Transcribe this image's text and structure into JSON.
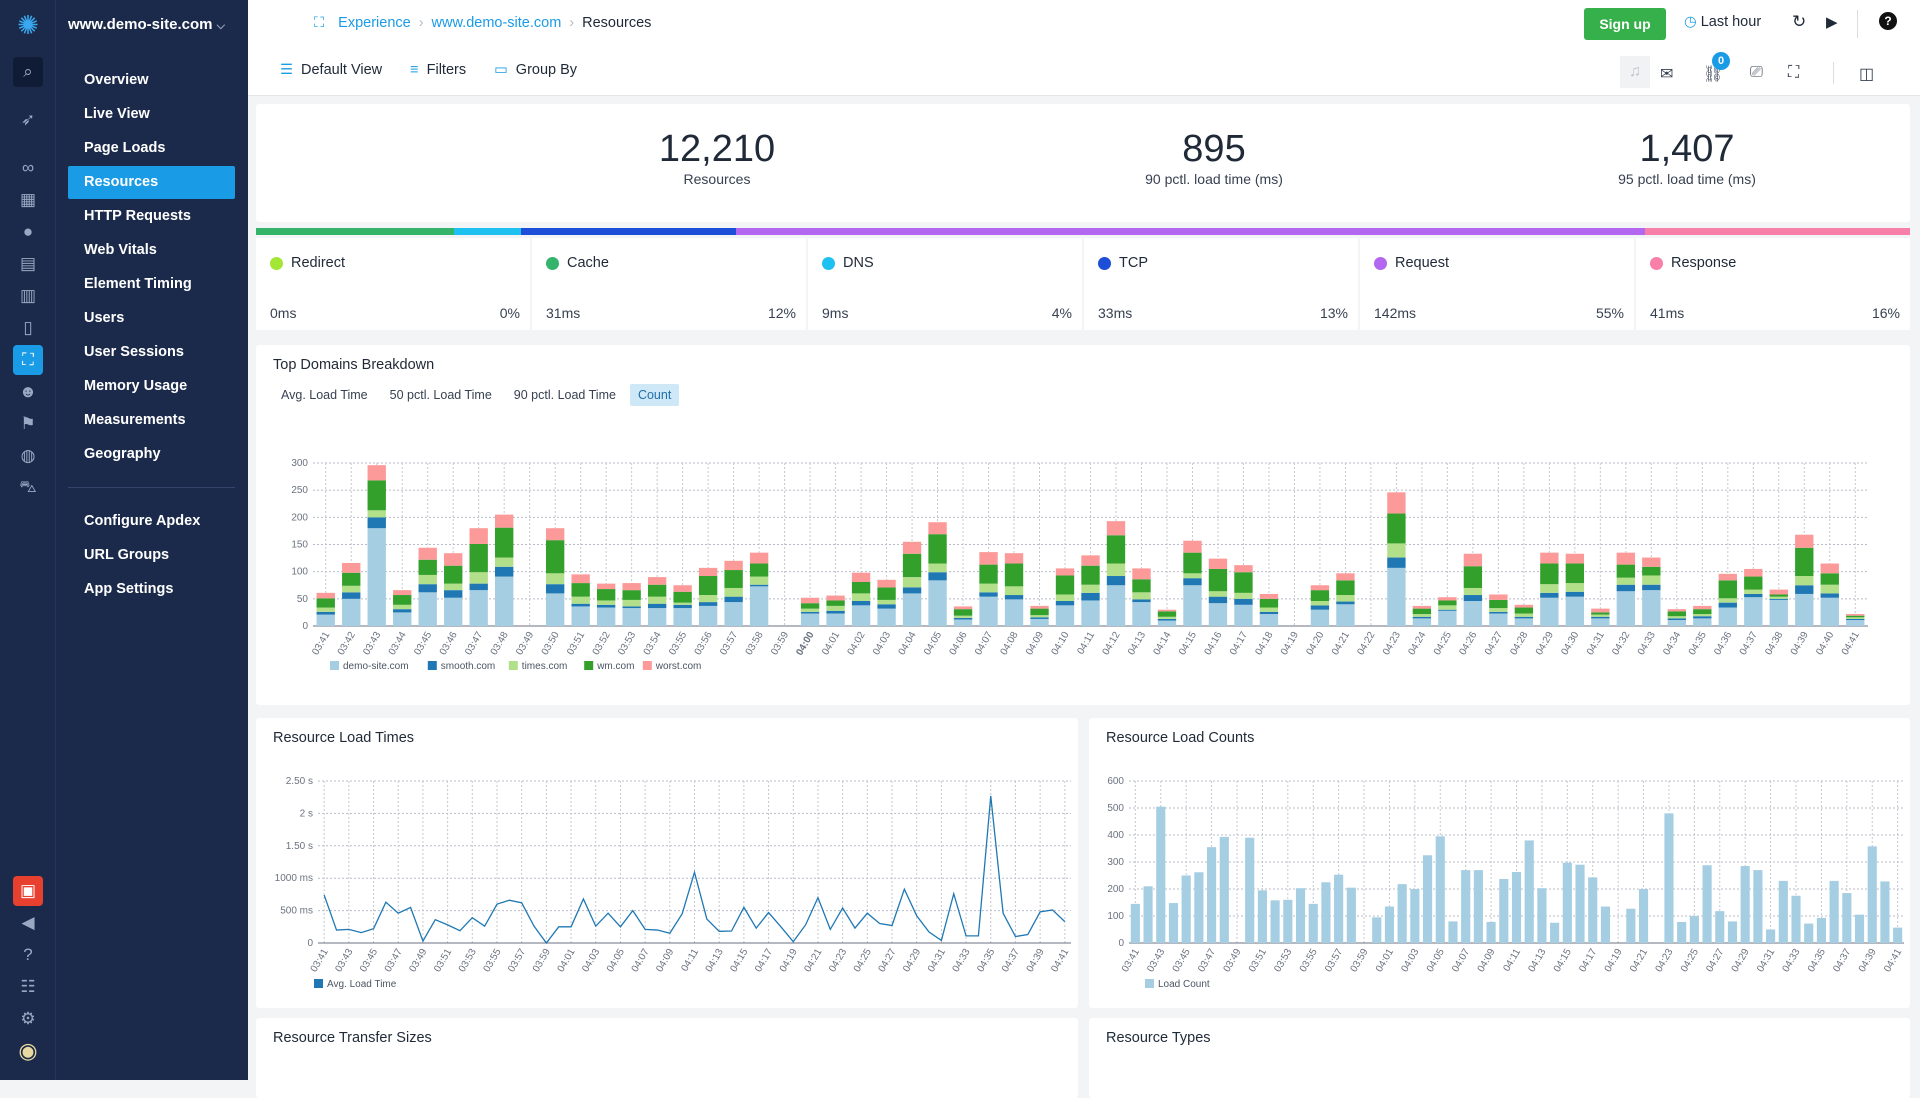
{
  "site": "www.demo-site.com",
  "nav": [
    "Overview",
    "Live View",
    "Page Loads",
    "Resources",
    "HTTP Requests",
    "Web Vitals",
    "Element Timing",
    "Users",
    "User Sessions",
    "Memory Usage",
    "Measurements",
    "Geography"
  ],
  "nav2": [
    "Configure Apdex",
    "URL Groups",
    "App Settings"
  ],
  "active": "Resources",
  "breadcrumb": [
    "Experience",
    "www.demo-site.com",
    "Resources"
  ],
  "toolbar": {
    "default_view": "Default View",
    "filters": "Filters",
    "group_by": "Group By",
    "signup": "Sign up",
    "time_range": "Last hour",
    "link_badge": "0"
  },
  "stats": [
    {
      "value": "12,210",
      "label": "Resources"
    },
    {
      "value": "895",
      "label": "90 pctl. load time (ms)"
    },
    {
      "value": "1,407",
      "label": "95 pctl. load time (ms)"
    }
  ],
  "phases": [
    {
      "name": "Redirect",
      "time": "0ms",
      "pct": "0%",
      "color": "#a3e635",
      "share": 0
    },
    {
      "name": "Cache",
      "time": "31ms",
      "pct": "12%",
      "color": "#34b36b",
      "share": 12
    },
    {
      "name": "DNS",
      "time": "9ms",
      "pct": "4%",
      "color": "#1fc1f0",
      "share": 4
    },
    {
      "name": "TCP",
      "time": "33ms",
      "pct": "13%",
      "color": "#1d4ed8",
      "share": 13
    },
    {
      "name": "Request",
      "time": "142ms",
      "pct": "55%",
      "color": "#b366f0",
      "share": 55
    },
    {
      "name": "Response",
      "time": "41ms",
      "pct": "16%",
      "color": "#f77fa8",
      "share": 16
    }
  ],
  "top_domains": {
    "title": "Top Domains Breakdown",
    "tabs": [
      "Avg. Load Time",
      "50 pctl. Load Time",
      "90 pctl. Load Time",
      "Count"
    ],
    "active_tab": "Count"
  },
  "cards": {
    "load_times": "Resource Load Times",
    "load_counts": "Resource Load Counts",
    "transfer_sizes": "Resource Transfer Sizes",
    "types": "Resource Types"
  },
  "chart_data": [
    {
      "type": "bar",
      "stacked": true,
      "ylim": [
        0,
        300
      ],
      "yticks": [
        "0",
        "50",
        "100",
        "150",
        "200",
        "250",
        "300"
      ],
      "grid": true,
      "legend": "bottom-left",
      "categories": [
        "03:41",
        "03:42",
        "03:43",
        "03:44",
        "03:45",
        "03:46",
        "03:47",
        "03:48",
        "03:49",
        "03:50",
        "03:51",
        "03:52",
        "03:53",
        "03:54",
        "03:55",
        "03:56",
        "03:57",
        "03:58",
        "03:59",
        "04:00",
        "04:01",
        "04:02",
        "04:03",
        "04:04",
        "04:05",
        "04:06",
        "04:07",
        "04:08",
        "04:09",
        "04:10",
        "04:11",
        "04:12",
        "04:13",
        "04:14",
        "04:15",
        "04:16",
        "04:17",
        "04:18",
        "04:19",
        "04:20",
        "04:21",
        "04:22",
        "04:23",
        "04:24",
        "04:25",
        "04:26",
        "04:27",
        "04:28",
        "04:29",
        "04:30",
        "04:31",
        "04:32",
        "04:33",
        "04:34",
        "04:35",
        "04:36",
        "04:37",
        "04:38",
        "04:39",
        "04:40",
        "04:41"
      ],
      "series": [
        {
          "name": "demo-site.com",
          "color": "#a6cee3",
          "values": [
            21,
            50,
            180,
            25,
            62,
            52,
            66,
            91,
            0,
            60,
            36,
            34,
            33,
            33,
            33,
            37,
            44,
            73,
            0,
            23,
            23,
            38,
            32,
            60,
            84,
            12,
            54,
            49,
            13,
            38,
            47,
            75,
            44,
            10,
            75,
            42,
            39,
            22,
            0,
            30,
            40,
            0,
            107,
            14,
            28,
            46,
            23,
            14,
            52,
            54,
            14,
            64,
            66,
            11,
            14,
            34,
            53,
            48,
            59,
            52,
            11
          ]
        },
        {
          "name": "smooth.com",
          "color": "#1f78b4",
          "values": [
            5,
            12,
            20,
            6,
            15,
            14,
            12,
            18,
            0,
            17,
            5,
            5,
            3,
            8,
            6,
            7,
            10,
            3,
            0,
            3,
            5,
            8,
            8,
            11,
            15,
            3,
            8,
            8,
            3,
            8,
            14,
            17,
            5,
            3,
            13,
            12,
            11,
            4,
            0,
            8,
            5,
            0,
            19,
            3,
            2,
            11,
            3,
            3,
            9,
            9,
            3,
            12,
            10,
            3,
            4,
            9,
            6,
            2,
            16,
            8,
            2
          ]
        },
        {
          "name": "times.com",
          "color": "#b2df8a",
          "values": [
            8,
            12,
            13,
            8,
            17,
            12,
            21,
            17,
            0,
            20,
            13,
            8,
            12,
            13,
            4,
            13,
            16,
            15,
            0,
            6,
            9,
            14,
            8,
            19,
            16,
            4,
            16,
            16,
            4,
            12,
            15,
            23,
            13,
            4,
            9,
            10,
            11,
            8,
            0,
            8,
            12,
            0,
            26,
            5,
            8,
            13,
            7,
            6,
            16,
            16,
            4,
            13,
            17,
            4,
            4,
            8,
            8,
            4,
            17,
            16,
            3
          ]
        },
        {
          "name": "wm.com",
          "color": "#33a02c",
          "values": [
            17,
            24,
            55,
            18,
            28,
            33,
            52,
            55,
            0,
            61,
            25,
            21,
            18,
            22,
            20,
            35,
            33,
            24,
            0,
            10,
            10,
            21,
            23,
            43,
            54,
            12,
            35,
            42,
            12,
            35,
            35,
            52,
            24,
            10,
            38,
            41,
            38,
            16,
            0,
            20,
            27,
            0,
            55,
            10,
            9,
            40,
            15,
            11,
            38,
            36,
            4,
            24,
            16,
            9,
            9,
            33,
            24,
            4,
            52,
            21,
            3
          ]
        },
        {
          "name": "worst.com",
          "color": "#fb9a99",
          "values": [
            10,
            18,
            28,
            9,
            22,
            23,
            29,
            24,
            0,
            22,
            16,
            10,
            13,
            14,
            12,
            15,
            17,
            20,
            0,
            10,
            9,
            17,
            14,
            22,
            22,
            5,
            23,
            19,
            5,
            13,
            19,
            26,
            20,
            3,
            22,
            19,
            13,
            9,
            0,
            9,
            13,
            0,
            39,
            5,
            6,
            23,
            10,
            5,
            20,
            18,
            7,
            22,
            17,
            4,
            6,
            12,
            14,
            9,
            24,
            18,
            3
          ]
        }
      ]
    },
    {
      "type": "line",
      "ylim": [
        0,
        2500
      ],
      "yticks": [
        "0",
        "500 ms",
        "1000 ms",
        "1.50 s",
        "2 s",
        "2.50 s"
      ],
      "grid": true,
      "legend": "bottom-left",
      "categories": [
        "03:41",
        "03:42",
        "03:43",
        "03:44",
        "03:45",
        "03:46",
        "03:47",
        "03:48",
        "03:49",
        "03:50",
        "03:51",
        "03:52",
        "03:53",
        "03:54",
        "03:55",
        "03:56",
        "03:57",
        "03:58",
        "03:59",
        "04:00",
        "04:01",
        "04:02",
        "04:03",
        "04:04",
        "04:05",
        "04:06",
        "04:07",
        "04:08",
        "04:09",
        "04:10",
        "04:11",
        "04:12",
        "04:13",
        "04:14",
        "04:15",
        "04:16",
        "04:17",
        "04:18",
        "04:19",
        "04:20",
        "04:21",
        "04:22",
        "04:23",
        "04:24",
        "04:25",
        "04:26",
        "04:27",
        "04:28",
        "04:29",
        "04:30",
        "04:31",
        "04:32",
        "04:33",
        "04:34",
        "04:35",
        "04:36",
        "04:37",
        "04:38",
        "04:39",
        "04:40",
        "04:41"
      ],
      "series": [
        {
          "name": "Avg. Load Time",
          "color": "#1f78b4",
          "values": [
            740,
            200,
            210,
            160,
            220,
            630,
            460,
            550,
            30,
            360,
            280,
            190,
            390,
            260,
            600,
            660,
            620,
            260,
            0,
            250,
            250,
            680,
            260,
            460,
            250,
            500,
            210,
            200,
            150,
            450,
            1090,
            370,
            180,
            185,
            550,
            230,
            470,
            250,
            20,
            280,
            700,
            210,
            540,
            230,
            460,
            300,
            270,
            830,
            420,
            170,
            40,
            760,
            110,
            110,
            2270,
            460,
            100,
            130,
            480,
            510,
            330
          ]
        }
      ]
    },
    {
      "type": "bar",
      "ylim": [
        0,
        600
      ],
      "yticks": [
        "0",
        "100",
        "200",
        "300",
        "400",
        "500",
        "600"
      ],
      "grid": true,
      "legend": "bottom-left",
      "categories": [
        "03:41",
        "03:42",
        "03:43",
        "03:44",
        "03:45",
        "03:46",
        "03:47",
        "03:48",
        "03:49",
        "03:50",
        "03:51",
        "03:52",
        "03:53",
        "03:54",
        "03:55",
        "03:56",
        "03:57",
        "03:58",
        "03:59",
        "04:00",
        "04:01",
        "04:02",
        "04:03",
        "04:04",
        "04:05",
        "04:06",
        "04:07",
        "04:08",
        "04:09",
        "04:10",
        "04:11",
        "04:12",
        "04:13",
        "04:14",
        "04:15",
        "04:16",
        "04:17",
        "04:18",
        "04:19",
        "04:20",
        "04:21",
        "04:22",
        "04:23",
        "04:24",
        "04:25",
        "04:26",
        "04:27",
        "04:28",
        "04:29",
        "04:30",
        "04:31",
        "04:32",
        "04:33",
        "04:34",
        "04:35",
        "04:36",
        "04:37",
        "04:38",
        "04:39",
        "04:40",
        "04:41"
      ],
      "series": [
        {
          "name": "Load Count",
          "color": "#a6cee3",
          "values": [
            145,
            210,
            505,
            148,
            250,
            262,
            355,
            393,
            0,
            390,
            195,
            158,
            160,
            203,
            145,
            225,
            253,
            205,
            0,
            95,
            135,
            218,
            200,
            325,
            395,
            80,
            270,
            270,
            78,
            237,
            263,
            380,
            203,
            75,
            297,
            290,
            243,
            135,
            0,
            127,
            200,
            0,
            480,
            78,
            100,
            288,
            118,
            80,
            285,
            270,
            50,
            230,
            175,
            72,
            93,
            230,
            185,
            105,
            358,
            228,
            57
          ]
        }
      ]
    }
  ]
}
